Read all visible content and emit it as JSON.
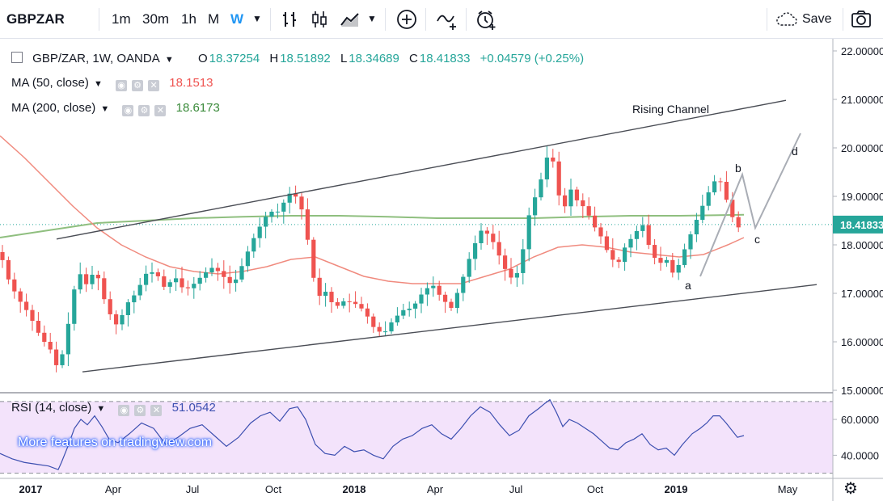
{
  "toolbar": {
    "symbol": "GBPZAR",
    "intervals": [
      "1m",
      "30m",
      "1h",
      "M",
      "W"
    ],
    "active_interval": "W",
    "save_label": "Save"
  },
  "legend": {
    "title": "GBP/ZAR, 1W, OANDA",
    "open_label": "O",
    "open": "18.37254",
    "high_label": "H",
    "high": "18.51892",
    "low_label": "L",
    "low": "18.34689",
    "close_label": "C",
    "close": "18.41833",
    "change": "+0.04579 (+0.25%)",
    "ma50_label": "MA (50, close)",
    "ma50_value": "18.1513",
    "ma200_label": "MA (200, close)",
    "ma200_value": "18.6173",
    "rsi_label": "RSI (14, close)",
    "rsi_value": "51.0542"
  },
  "promo": "More features on tradingview.com",
  "colors": {
    "up": "#26a69a",
    "down": "#ef5350",
    "ma50": "#ef5350",
    "ma200": "#6aa84f",
    "rsi": "#3c4fb0",
    "accent": "#2196f3"
  },
  "chart_data": {
    "type": "candlestick",
    "price_axis": {
      "ticks": [
        "22.00000",
        "21.00000",
        "20.00000",
        "19.00000",
        "18.00000",
        "17.00000",
        "16.00000",
        "15.00000"
      ],
      "ylim": [
        15.0,
        22.25
      ],
      "last_price_label": "18.41833"
    },
    "rsi_axis": {
      "ticks": [
        "60.0000",
        "40.0000"
      ],
      "ylim": [
        28,
        74
      ],
      "band": [
        30,
        70
      ]
    },
    "x_axis": {
      "labels": [
        "2017",
        "Apr",
        "Jul",
        "Oct",
        "2018",
        "Apr",
        "Jul",
        "Oct",
        "2019",
        "May"
      ]
    },
    "annotations": {
      "channel": "Rising Channel",
      "wave_a": "a",
      "wave_b": "b",
      "wave_c": "c",
      "wave_d": "d"
    },
    "price_path": [
      [
        0,
        17.85
      ],
      [
        10,
        17.3
      ],
      [
        22,
        16.9
      ],
      [
        35,
        16.6
      ],
      [
        50,
        16.1
      ],
      [
        62,
        15.85
      ],
      [
        70,
        15.5
      ],
      [
        75,
        15.6
      ],
      [
        82,
        16.1
      ],
      [
        90,
        17.0
      ],
      [
        99,
        17.4
      ],
      [
        108,
        17.15
      ],
      [
        117,
        17.5
      ],
      [
        124,
        17.2
      ],
      [
        130,
        16.8
      ],
      [
        138,
        16.5
      ],
      [
        146,
        16.3
      ],
      [
        155,
        16.75
      ],
      [
        168,
        17.0
      ],
      [
        180,
        17.4
      ],
      [
        192,
        17.45
      ],
      [
        204,
        17.1
      ],
      [
        216,
        17.35
      ],
      [
        228,
        17.05
      ],
      [
        240,
        17.2
      ],
      [
        252,
        17.4
      ],
      [
        264,
        17.55
      ],
      [
        276,
        17.35
      ],
      [
        288,
        17.15
      ],
      [
        300,
        17.6
      ],
      [
        311,
        18.05
      ],
      [
        322,
        18.4
      ],
      [
        333,
        18.7
      ],
      [
        342,
        18.65
      ],
      [
        352,
        18.9
      ],
      [
        360,
        19.1
      ],
      [
        368,
        18.95
      ],
      [
        376,
        18.6
      ],
      [
        384,
        17.7
      ],
      [
        392,
        16.9
      ],
      [
        402,
        17.05
      ],
      [
        414,
        16.7
      ],
      [
        426,
        16.85
      ],
      [
        438,
        16.8
      ],
      [
        450,
        16.65
      ],
      [
        462,
        16.3
      ],
      [
        474,
        16.15
      ],
      [
        486,
        16.45
      ],
      [
        498,
        16.65
      ],
      [
        510,
        16.7
      ],
      [
        522,
        17.0
      ],
      [
        534,
        17.2
      ],
      [
        546,
        16.9
      ],
      [
        558,
        16.7
      ],
      [
        570,
        17.2
      ],
      [
        582,
        17.8
      ],
      [
        594,
        18.3
      ],
      [
        606,
        18.2
      ],
      [
        618,
        17.75
      ],
      [
        630,
        17.3
      ],
      [
        642,
        17.45
      ],
      [
        654,
        18.6
      ],
      [
        666,
        19.2
      ],
      [
        674,
        19.6
      ],
      [
        680,
        20.1
      ],
      [
        688,
        19.3
      ],
      [
        696,
        18.6
      ],
      [
        704,
        19.2
      ],
      [
        714,
        18.9
      ],
      [
        724,
        18.75
      ],
      [
        734,
        18.4
      ],
      [
        744,
        18.15
      ],
      [
        754,
        17.75
      ],
      [
        764,
        17.6
      ],
      [
        774,
        18.0
      ],
      [
        784,
        18.2
      ],
      [
        794,
        18.45
      ],
      [
        804,
        17.9
      ],
      [
        814,
        17.6
      ],
      [
        824,
        17.7
      ],
      [
        834,
        17.35
      ],
      [
        844,
        17.8
      ],
      [
        856,
        18.3
      ],
      [
        866,
        18.7
      ],
      [
        874,
        19.0
      ],
      [
        882,
        19.3
      ],
      [
        890,
        19.35
      ],
      [
        898,
        18.95
      ],
      [
        905,
        18.6
      ],
      [
        912,
        18.35
      ],
      [
        920,
        18.42
      ]
    ],
    "ma50": [
      [
        0,
        20.25
      ],
      [
        30,
        19.8
      ],
      [
        60,
        19.3
      ],
      [
        90,
        18.8
      ],
      [
        120,
        18.35
      ],
      [
        150,
        18.0
      ],
      [
        180,
        17.75
      ],
      [
        210,
        17.55
      ],
      [
        240,
        17.45
      ],
      [
        270,
        17.4
      ],
      [
        300,
        17.45
      ],
      [
        330,
        17.55
      ],
      [
        360,
        17.7
      ],
      [
        390,
        17.75
      ],
      [
        420,
        17.55
      ],
      [
        450,
        17.35
      ],
      [
        480,
        17.25
      ],
      [
        510,
        17.2
      ],
      [
        540,
        17.2
      ],
      [
        570,
        17.2
      ],
      [
        600,
        17.35
      ],
      [
        630,
        17.5
      ],
      [
        660,
        17.75
      ],
      [
        690,
        17.95
      ],
      [
        720,
        18.0
      ],
      [
        750,
        17.95
      ],
      [
        780,
        17.85
      ],
      [
        810,
        17.8
      ],
      [
        840,
        17.75
      ],
      [
        870,
        17.8
      ],
      [
        900,
        18.0
      ],
      [
        920,
        18.15
      ]
    ],
    "ma200": [
      [
        0,
        18.15
      ],
      [
        60,
        18.3
      ],
      [
        120,
        18.45
      ],
      [
        180,
        18.5
      ],
      [
        240,
        18.55
      ],
      [
        300,
        18.58
      ],
      [
        360,
        18.6
      ],
      [
        420,
        18.6
      ],
      [
        480,
        18.58
      ],
      [
        540,
        18.55
      ],
      [
        600,
        18.55
      ],
      [
        660,
        18.55
      ],
      [
        720,
        18.58
      ],
      [
        780,
        18.6
      ],
      [
        840,
        18.6
      ],
      [
        920,
        18.62
      ]
    ],
    "rsi_path": [
      [
        0,
        41
      ],
      [
        15,
        38
      ],
      [
        30,
        36
      ],
      [
        45,
        35
      ],
      [
        60,
        34
      ],
      [
        72,
        32
      ],
      [
        76,
        36
      ],
      [
        84,
        45
      ],
      [
        92,
        55
      ],
      [
        100,
        60
      ],
      [
        108,
        57
      ],
      [
        117,
        62
      ],
      [
        126,
        56
      ],
      [
        135,
        49
      ],
      [
        146,
        47
      ],
      [
        160,
        52
      ],
      [
        175,
        58
      ],
      [
        190,
        55
      ],
      [
        205,
        46
      ],
      [
        220,
        50
      ],
      [
        235,
        55
      ],
      [
        250,
        57
      ],
      [
        265,
        51
      ],
      [
        280,
        45
      ],
      [
        295,
        50
      ],
      [
        310,
        58
      ],
      [
        322,
        62
      ],
      [
        334,
        64
      ],
      [
        346,
        59
      ],
      [
        358,
        66
      ],
      [
        368,
        67
      ],
      [
        378,
        60
      ],
      [
        390,
        46
      ],
      [
        402,
        41
      ],
      [
        414,
        40
      ],
      [
        426,
        45
      ],
      [
        438,
        42
      ],
      [
        450,
        43
      ],
      [
        462,
        40
      ],
      [
        474,
        38
      ],
      [
        486,
        45
      ],
      [
        498,
        49
      ],
      [
        510,
        51
      ],
      [
        522,
        55
      ],
      [
        534,
        57
      ],
      [
        546,
        52
      ],
      [
        558,
        49
      ],
      [
        570,
        55
      ],
      [
        582,
        62
      ],
      [
        594,
        67
      ],
      [
        606,
        64
      ],
      [
        618,
        57
      ],
      [
        630,
        51
      ],
      [
        642,
        54
      ],
      [
        654,
        62
      ],
      [
        666,
        66
      ],
      [
        674,
        69
      ],
      [
        680,
        71
      ],
      [
        688,
        64
      ],
      [
        696,
        56
      ],
      [
        704,
        60
      ],
      [
        714,
        58
      ],
      [
        724,
        55
      ],
      [
        734,
        52
      ],
      [
        744,
        48
      ],
      [
        754,
        44
      ],
      [
        764,
        43
      ],
      [
        774,
        47
      ],
      [
        784,
        49
      ],
      [
        794,
        52
      ],
      [
        804,
        46
      ],
      [
        814,
        43
      ],
      [
        824,
        44
      ],
      [
        834,
        40
      ],
      [
        844,
        46
      ],
      [
        856,
        52
      ],
      [
        866,
        55
      ],
      [
        874,
        58
      ],
      [
        882,
        62
      ],
      [
        890,
        62
      ],
      [
        898,
        58
      ],
      [
        905,
        54
      ],
      [
        912,
        50
      ],
      [
        920,
        51
      ]
    ]
  }
}
